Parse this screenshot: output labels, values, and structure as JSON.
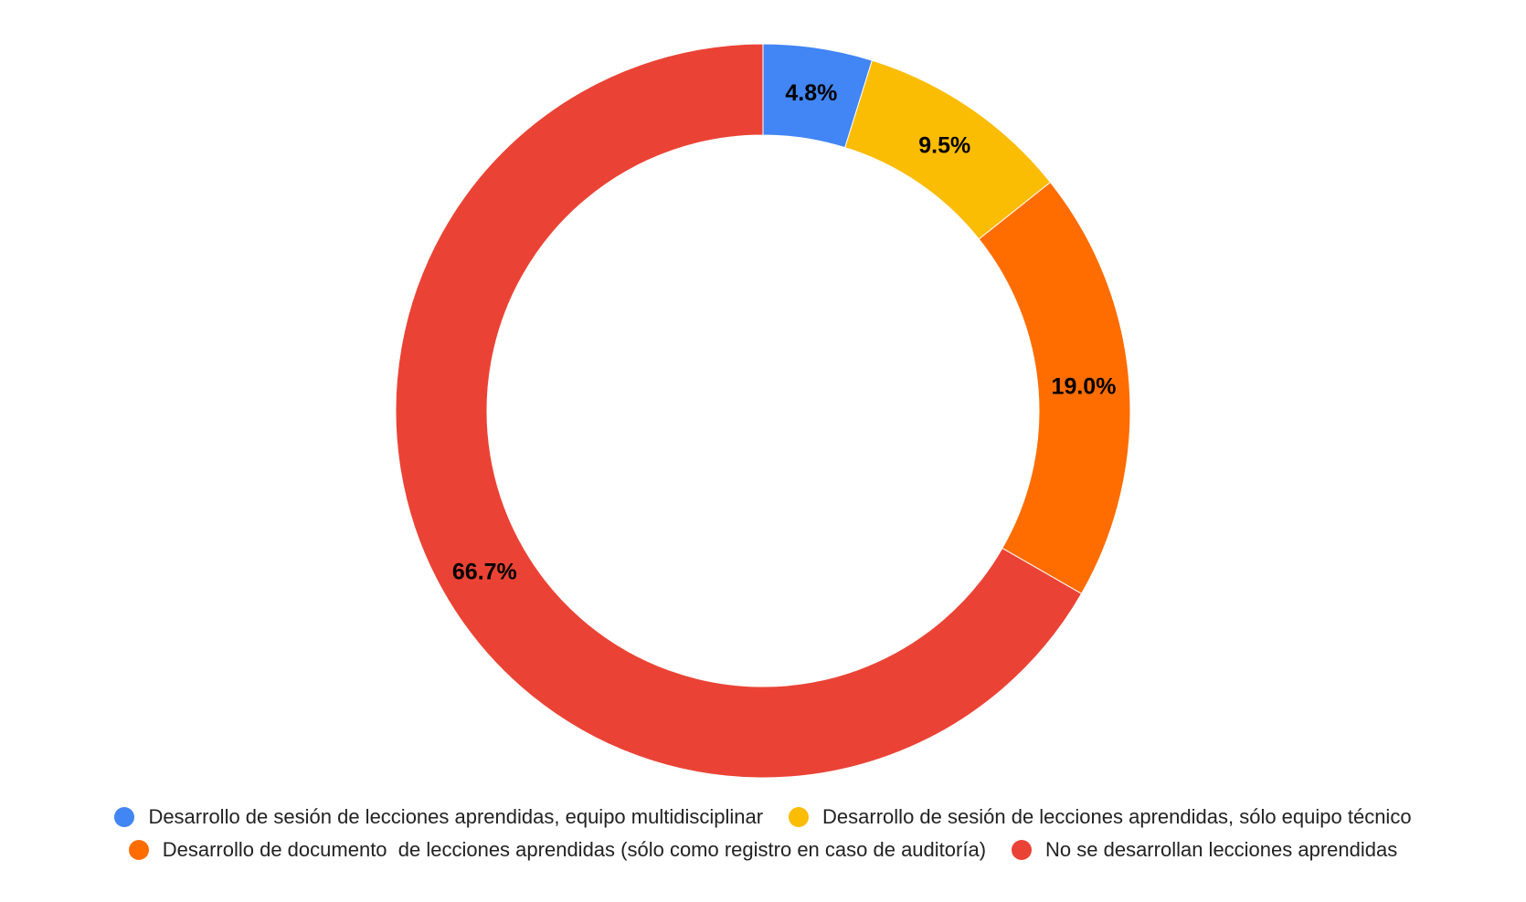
{
  "chart_data": {
    "type": "pie",
    "style": "donut",
    "categories": [
      "Desarrollo de sesión de lecciones aprendidas, equipo multidisciplinar",
      "Desarrollo de sesión de lecciones aprendidas, sólo equipo técnico",
      "Desarrollo de documento  de lecciones aprendidas (sólo como registro en caso de auditoría)",
      "No se desarrollan lecciones aprendidas"
    ],
    "values": [
      4.8,
      9.5,
      19.0,
      66.7
    ],
    "labels": [
      "4.8%",
      "9.5%",
      "19.0%",
      "66.7%"
    ],
    "colors": [
      "#4285F4",
      "#FBBC04",
      "#FF6D01",
      "#EA4335"
    ],
    "legend_position": "bottom",
    "title": ""
  }
}
